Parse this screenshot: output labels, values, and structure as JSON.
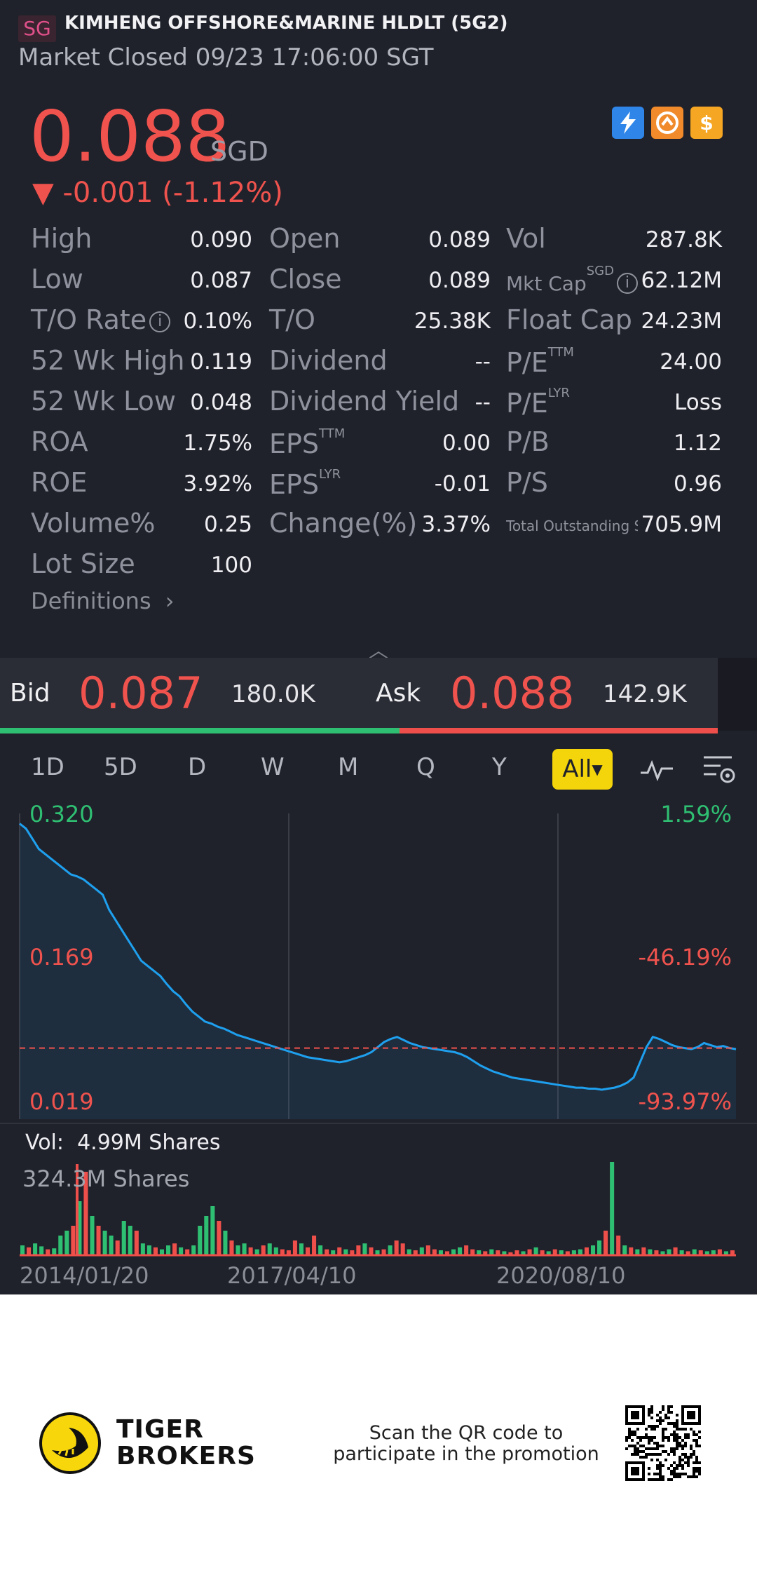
{
  "header": {
    "market": "SG",
    "stock_name": "KIMHENG OFFSHORE&MARINE HLDLT (5G2)",
    "status": "Market Closed 09/23 17:06:00 SGT",
    "price": "0.088",
    "currency": "SGD",
    "change": "▼ -0.001 (-1.12%)",
    "icons": [
      "lightning-icon",
      "tiger-icon",
      "dollar-icon"
    ],
    "accent_color": "#f0534e"
  },
  "stats": {
    "col1": [
      {
        "label": "High",
        "value": "0.090"
      },
      {
        "label": "Low",
        "value": "0.087"
      },
      {
        "label": "T/O Rate",
        "value": "0.10%"
      },
      {
        "label": "52 Wk High",
        "value": "0.119"
      },
      {
        "label": "52 Wk Low",
        "value": "0.048"
      },
      {
        "label": "ROA",
        "value": "1.75%"
      },
      {
        "label": "ROE",
        "value": "3.92%"
      },
      {
        "label": "Volume%",
        "value": "0.25"
      },
      {
        "label": "Lot Size",
        "value": "100"
      }
    ],
    "col2": [
      {
        "label": "Open",
        "value": "0.089"
      },
      {
        "label": "Close",
        "value": "0.089"
      },
      {
        "label": "T/O",
        "value": "25.38K"
      },
      {
        "label": "Dividend",
        "value": "--"
      },
      {
        "label": "Dividend Yield",
        "value": "--"
      },
      {
        "label": "EPS",
        "sup": "TTM",
        "value": "0.00"
      },
      {
        "label": "EPS",
        "sup": "LYR",
        "value": "-0.01"
      },
      {
        "label": "Change(%)",
        "value": "3.37%"
      }
    ],
    "col3": [
      {
        "label": "Vol",
        "value": "287.8K"
      },
      {
        "label": "Mkt Cap",
        "sup": "SGD",
        "value": "62.12M"
      },
      {
        "label": "Float Cap",
        "value": "24.23M"
      },
      {
        "label": "P/E",
        "sup": "TTM",
        "value": "24.00"
      },
      {
        "label": "P/E",
        "sup": "LYR",
        "value": "Loss"
      },
      {
        "label": "P/B",
        "value": "1.12"
      },
      {
        "label": "P/S",
        "value": "0.96"
      },
      {
        "label": "Total Outstanding Sha",
        "value": "705.9M"
      }
    ],
    "definitions": "Definitions"
  },
  "bidask": {
    "bid_label": "Bid",
    "bid_price": "0.087",
    "bid_size": "180.0K",
    "ask_label": "Ask",
    "ask_price": "0.088",
    "ask_size": "142.9K",
    "bid_share": 0.557
  },
  "tabs": [
    "1D",
    "5D",
    "D",
    "W",
    "M",
    "Q",
    "Y",
    "All"
  ],
  "active_tab": "All",
  "chart_data": {
    "type": "line",
    "y_labels": {
      "top": "0.320",
      "mid": "0.169",
      "bottom": "0.019"
    },
    "pct_labels": {
      "top": "1.59%",
      "mid": "-46.19%",
      "bottom": "-93.97%"
    },
    "ylim": [
      0.019,
      0.32
    ],
    "reference_price": 0.089,
    "x_labels": [
      "2014/01/20",
      "2017/04/10",
      "2020/08/10"
    ],
    "line_color": "#1ea0ef",
    "price_series": [
      0.31,
      0.305,
      0.295,
      0.285,
      0.28,
      0.275,
      0.27,
      0.265,
      0.26,
      0.258,
      0.255,
      0.25,
      0.245,
      0.24,
      0.225,
      0.215,
      0.205,
      0.195,
      0.185,
      0.175,
      0.17,
      0.165,
      0.16,
      0.152,
      0.145,
      0.14,
      0.132,
      0.125,
      0.12,
      0.115,
      0.113,
      0.11,
      0.108,
      0.105,
      0.102,
      0.1,
      0.098,
      0.096,
      0.094,
      0.092,
      0.09,
      0.088,
      0.086,
      0.084,
      0.082,
      0.08,
      0.079,
      0.078,
      0.077,
      0.076,
      0.075,
      0.076,
      0.078,
      0.08,
      0.082,
      0.085,
      0.09,
      0.095,
      0.098,
      0.1,
      0.097,
      0.094,
      0.092,
      0.09,
      0.089,
      0.088,
      0.087,
      0.086,
      0.085,
      0.083,
      0.08,
      0.076,
      0.072,
      0.069,
      0.066,
      0.064,
      0.062,
      0.06,
      0.059,
      0.058,
      0.057,
      0.056,
      0.055,
      0.054,
      0.053,
      0.052,
      0.051,
      0.05,
      0.05,
      0.049,
      0.049,
      0.048,
      0.049,
      0.05,
      0.052,
      0.055,
      0.06,
      0.075,
      0.09,
      0.1,
      0.098,
      0.095,
      0.092,
      0.09,
      0.089,
      0.088,
      0.09,
      0.094,
      0.092,
      0.09,
      0.091,
      0.089,
      0.088
    ]
  },
  "volume": {
    "current": "4.99M Shares",
    "current_label": "Vol:",
    "scale": "324.3M Shares",
    "bars": [
      0.1,
      0.08,
      0.12,
      0.09,
      0.06,
      0.07,
      0.2,
      0.25,
      0.3,
      0.55,
      0.85,
      0.4,
      0.3,
      0.25,
      0.2,
      0.15,
      0.35,
      0.3,
      0.25,
      0.12,
      0.1,
      0.08,
      0.06,
      0.1,
      0.12,
      0.08,
      0.06,
      0.1,
      0.3,
      0.4,
      0.5,
      0.35,
      0.25,
      0.15,
      0.1,
      0.12,
      0.08,
      0.06,
      0.1,
      0.12,
      0.08,
      0.06,
      0.05,
      0.15,
      0.12,
      0.08,
      0.2,
      0.1,
      0.06,
      0.05,
      0.08,
      0.06,
      0.05,
      0.1,
      0.12,
      0.08,
      0.05,
      0.06,
      0.1,
      0.15,
      0.12,
      0.06,
      0.05,
      0.08,
      0.1,
      0.06,
      0.05,
      0.04,
      0.06,
      0.08,
      0.1,
      0.06,
      0.05,
      0.04,
      0.06,
      0.05,
      0.04,
      0.03,
      0.05,
      0.04,
      0.06,
      0.08,
      0.05,
      0.04,
      0.06,
      0.05,
      0.04,
      0.05,
      0.06,
      0.08,
      0.1,
      0.15,
      0.25,
      0.95,
      0.2,
      0.1,
      0.08,
      0.06,
      0.08,
      0.06,
      0.05,
      0.04,
      0.06,
      0.08,
      0.05,
      0.04,
      0.06,
      0.05,
      0.04,
      0.05,
      0.06,
      0.04,
      0.05
    ],
    "colors": [
      "up",
      "down",
      "up",
      "up",
      "down",
      "up",
      "up",
      "up",
      "down",
      "up",
      "down",
      "up",
      "down",
      "up",
      "up",
      "down",
      "up",
      "up",
      "down",
      "up",
      "up",
      "down",
      "up",
      "up",
      "down",
      "up",
      "down",
      "up",
      "up",
      "up",
      "up",
      "down",
      "up",
      "down",
      "up",
      "up",
      "down",
      "up",
      "down",
      "up",
      "up",
      "down",
      "down",
      "down",
      "up",
      "down",
      "down",
      "up",
      "down",
      "up",
      "down",
      "up",
      "down",
      "down",
      "up",
      "down",
      "up",
      "down",
      "up",
      "down",
      "down",
      "up",
      "down",
      "up",
      "down",
      "down",
      "up",
      "down",
      "up",
      "up",
      "down",
      "down",
      "up",
      "down",
      "up",
      "down",
      "up",
      "down",
      "down",
      "up",
      "down",
      "up",
      "down",
      "up",
      "down",
      "up",
      "down",
      "up",
      "up",
      "down",
      "up",
      "up",
      "down",
      "up",
      "down",
      "up",
      "down",
      "up",
      "down",
      "up",
      "down",
      "up",
      "up",
      "down",
      "up",
      "down",
      "up",
      "down",
      "up",
      "up",
      "down",
      "up",
      "down"
    ]
  },
  "footer": {
    "brand_line1": "TIGER",
    "brand_line2": "BROKERS",
    "promo_line1": "Scan the QR code to",
    "promo_line2": "participate in the promotion"
  }
}
